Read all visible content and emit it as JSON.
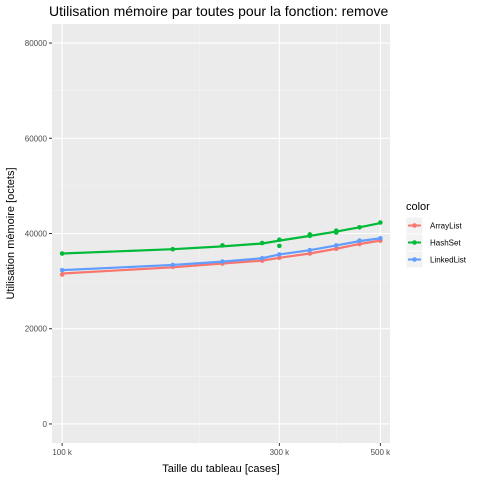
{
  "chart_data": {
    "type": "line",
    "title": "Utilisation mémoire par toutes pour la fonction: remove",
    "xlabel": "Taille du tableau [cases]",
    "ylabel": "Utilisation mémoire [octets]",
    "x_scale": "log10",
    "xlim": [
      95000,
      525000
    ],
    "ylim": [
      -4000,
      84000
    ],
    "x_ticks": [
      100000,
      300000,
      500000
    ],
    "x_tick_labels": [
      "100 k",
      "300 k",
      "500 k"
    ],
    "x_minor_ticks": [
      200000,
      400000
    ],
    "y_ticks": [
      0,
      20000,
      40000,
      60000,
      80000
    ],
    "y_tick_labels": [
      "0",
      "20000",
      "40000",
      "60000",
      "80000"
    ],
    "grid": true,
    "legend": {
      "title": "color",
      "position": "right"
    },
    "series": [
      {
        "name": "ArrayList",
        "color": "#F8766D",
        "x": [
          100000,
          175000,
          225000,
          275000,
          300000,
          350000,
          400000,
          450000,
          500000
        ],
        "line": [
          31600,
          32900,
          33700,
          34300,
          34900,
          35800,
          36800,
          37800,
          38500
        ],
        "points": [
          31400,
          33000,
          33700,
          34300,
          34900,
          35800,
          36800,
          37800,
          38500
        ]
      },
      {
        "name": "HashSet",
        "color": "#00BA38",
        "x": [
          100000,
          175000,
          225000,
          275000,
          300000,
          350000,
          400000,
          450000,
          500000
        ],
        "line": [
          35800,
          36700,
          37300,
          37900,
          38500,
          39500,
          40400,
          41300,
          42200
        ],
        "points": [
          35800,
          36700,
          37500,
          38000,
          38700,
          39500,
          40600,
          41300,
          42300
        ],
        "extra_points": [
          [
            300000,
            37400
          ],
          [
            350000,
            39800
          ],
          [
            400000,
            40200
          ]
        ]
      },
      {
        "name": "LinkedList",
        "color": "#619CFF",
        "x": [
          100000,
          175000,
          225000,
          275000,
          300000,
          350000,
          400000,
          450000,
          500000
        ],
        "line": [
          32300,
          33400,
          34100,
          34800,
          35600,
          36500,
          37500,
          38400,
          39000
        ],
        "points": [
          32300,
          33400,
          34100,
          34800,
          35600,
          36500,
          37500,
          38500,
          39000
        ]
      }
    ]
  }
}
